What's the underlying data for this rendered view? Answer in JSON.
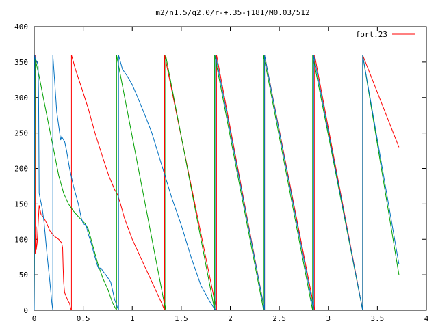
{
  "chart_data": {
    "type": "line",
    "title": "m2/n1.5/q2.0/r-+.35-j181/M0.03/512",
    "xlim": [
      0,
      4
    ],
    "ylim": [
      0,
      400
    ],
    "x_ticks": [
      0,
      0.5,
      1,
      1.5,
      2,
      2.5,
      3,
      3.5,
      4
    ],
    "y_ticks": [
      0,
      50,
      100,
      150,
      200,
      250,
      300,
      350,
      400
    ],
    "x_tick_labels": [
      "0",
      "0.5",
      "1",
      "1.5",
      "2",
      "2.5",
      "3",
      "3.5",
      "4"
    ],
    "y_tick_labels": [
      "0",
      "50",
      "100",
      "150",
      "200",
      "250",
      "300",
      "350",
      "400"
    ],
    "grid": false,
    "legend_position": "top-right",
    "series": [
      {
        "name": "fort.23",
        "color": "#ff0000",
        "segments": [
          [
            [
              0.0,
              0
            ],
            [
              0.01,
              360
            ],
            [
              0.01,
              80
            ],
            [
              0.02,
              118
            ],
            [
              0.02,
              85
            ],
            [
              0.03,
              95
            ],
            [
              0.04,
              120
            ],
            [
              0.05,
              148
            ],
            [
              0.07,
              135
            ],
            [
              0.1,
              130
            ],
            [
              0.13,
              122
            ],
            [
              0.16,
              112
            ],
            [
              0.2,
              105
            ],
            [
              0.25,
              100
            ],
            [
              0.28,
              95
            ],
            [
              0.29,
              88
            ],
            [
              0.295,
              60
            ],
            [
              0.3,
              40
            ],
            [
              0.31,
              25
            ],
            [
              0.33,
              18
            ],
            [
              0.35,
              12
            ],
            [
              0.36,
              10
            ],
            [
              0.37,
              3
            ],
            [
              0.38,
              0
            ]
          ],
          [
            [
              0.38,
              0
            ],
            [
              0.38,
              360
            ],
            [
              0.42,
              340
            ],
            [
              0.48,
              315
            ],
            [
              0.55,
              285
            ],
            [
              0.62,
              250
            ],
            [
              0.7,
              215
            ],
            [
              0.76,
              190
            ],
            [
              0.82,
              170
            ],
            [
              0.85,
              163
            ],
            [
              0.88,
              150
            ],
            [
              0.92,
              130
            ],
            [
              1.0,
              100
            ],
            [
              1.1,
              70
            ],
            [
              1.2,
              40
            ],
            [
              1.3,
              10
            ],
            [
              1.33,
              0
            ]
          ],
          [
            [
              1.33,
              0
            ],
            [
              1.33,
              360
            ],
            [
              1.86,
              0
            ]
          ],
          [
            [
              1.86,
              0
            ],
            [
              1.86,
              360
            ],
            [
              2.35,
              0
            ]
          ],
          [
            [
              2.35,
              0
            ],
            [
              2.35,
              360
            ],
            [
              2.86,
              0
            ]
          ],
          [
            [
              2.86,
              0
            ],
            [
              2.86,
              360
            ],
            [
              3.35,
              0
            ]
          ],
          [
            [
              3.35,
              0
            ],
            [
              3.35,
              360
            ],
            [
              3.72,
              230
            ]
          ]
        ]
      },
      {
        "name": "",
        "color": "#00a000",
        "segments": [
          [
            [
              0.0,
              0
            ],
            [
              0.01,
              355
            ],
            [
              0.05,
              330
            ],
            [
              0.1,
              295
            ],
            [
              0.15,
              260
            ],
            [
              0.2,
              225
            ],
            [
              0.25,
              190
            ],
            [
              0.3,
              165
            ],
            [
              0.35,
              150
            ],
            [
              0.4,
              140
            ],
            [
              0.45,
              132
            ],
            [
              0.5,
              125
            ],
            [
              0.52,
              122
            ],
            [
              0.55,
              115
            ],
            [
              0.6,
              90
            ],
            [
              0.65,
              65
            ],
            [
              0.7,
              45
            ],
            [
              0.75,
              30
            ],
            [
              0.8,
              10
            ],
            [
              0.84,
              0
            ]
          ],
          [
            [
              0.84,
              0
            ],
            [
              0.84,
              360
            ],
            [
              1.34,
              0
            ]
          ],
          [
            [
              1.34,
              0
            ],
            [
              1.34,
              360
            ],
            [
              1.84,
              0
            ]
          ],
          [
            [
              1.84,
              0
            ],
            [
              1.84,
              360
            ],
            [
              2.34,
              0
            ]
          ],
          [
            [
              2.34,
              0
            ],
            [
              2.34,
              360
            ],
            [
              2.84,
              0
            ]
          ],
          [
            [
              2.84,
              0
            ],
            [
              2.84,
              360
            ],
            [
              3.35,
              0
            ]
          ],
          [
            [
              3.35,
              0
            ],
            [
              3.35,
              360
            ],
            [
              3.72,
              50
            ]
          ]
        ]
      },
      {
        "name": "",
        "color": "#0070c0",
        "segments": [
          [
            [
              0.0,
              0
            ],
            [
              0.005,
              360
            ],
            [
              0.01,
              355
            ],
            [
              0.03,
              350
            ],
            [
              0.04,
              345
            ],
            [
              0.045,
              300
            ],
            [
              0.05,
              165
            ],
            [
              0.06,
              158
            ],
            [
              0.08,
              145
            ],
            [
              0.1,
              125
            ],
            [
              0.13,
              80
            ],
            [
              0.16,
              40
            ],
            [
              0.18,
              10
            ],
            [
              0.19,
              0
            ]
          ],
          [
            [
              0.19,
              0
            ],
            [
              0.19,
              360
            ],
            [
              0.21,
              320
            ],
            [
              0.23,
              280
            ],
            [
              0.26,
              250
            ],
            [
              0.27,
              240
            ],
            [
              0.28,
              245
            ],
            [
              0.3,
              240
            ],
            [
              0.31,
              238
            ],
            [
              0.33,
              225
            ],
            [
              0.36,
              200
            ],
            [
              0.4,
              175
            ],
            [
              0.45,
              150
            ],
            [
              0.48,
              130
            ],
            [
              0.5,
              122
            ],
            [
              0.53,
              120
            ],
            [
              0.55,
              108
            ],
            [
              0.58,
              95
            ],
            [
              0.6,
              85
            ],
            [
              0.62,
              75
            ],
            [
              0.64,
              65
            ],
            [
              0.66,
              58
            ],
            [
              0.68,
              60
            ],
            [
              0.7,
              55
            ],
            [
              0.72,
              52
            ],
            [
              0.74,
              48
            ],
            [
              0.78,
              40
            ],
            [
              0.82,
              15
            ],
            [
              0.86,
              0
            ]
          ],
          [
            [
              0.86,
              0
            ],
            [
              0.86,
              360
            ],
            [
              0.9,
              340
            ],
            [
              0.95,
              330
            ],
            [
              1.0,
              318
            ],
            [
              1.05,
              302
            ],
            [
              1.1,
              285
            ],
            [
              1.15,
              268
            ],
            [
              1.2,
              250
            ],
            [
              1.3,
              205
            ],
            [
              1.4,
              160
            ],
            [
              1.5,
              120
            ],
            [
              1.6,
              75
            ],
            [
              1.7,
              35
            ],
            [
              1.8,
              10
            ],
            [
              1.85,
              0
            ]
          ],
          [
            [
              1.85,
              0
            ],
            [
              1.85,
              360
            ],
            [
              2.35,
              0
            ]
          ],
          [
            [
              2.35,
              0
            ],
            [
              2.35,
              360
            ],
            [
              2.85,
              0
            ]
          ],
          [
            [
              2.85,
              0
            ],
            [
              2.85,
              360
            ],
            [
              3.35,
              0
            ]
          ],
          [
            [
              3.35,
              0
            ],
            [
              3.35,
              360
            ],
            [
              3.72,
              65
            ]
          ]
        ]
      }
    ]
  }
}
